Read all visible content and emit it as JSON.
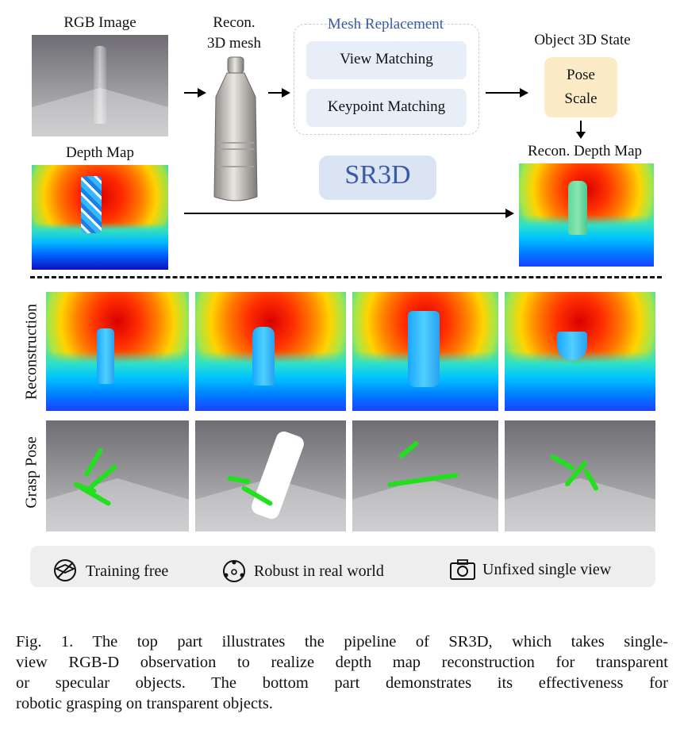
{
  "figure": {
    "rgb_label": "RGB Image",
    "mesh_label_line1": "Recon.",
    "mesh_label_line2": "3D mesh",
    "depth_label": "Depth Map",
    "mesh_replacement": {
      "title": "Mesh Replacement",
      "step1": "View Matching",
      "step2": "Keypoint Matching"
    },
    "state": {
      "title": "Object 3D State",
      "line1": "Pose",
      "line2": "Scale"
    },
    "method": "SR3D",
    "recon_depth_label": "Recon. Depth Map",
    "row_labels": {
      "reconstruction": "Reconstruction",
      "grasp": "Grasp Pose"
    },
    "features": [
      {
        "icon": "no-training-icon",
        "label": "Training free"
      },
      {
        "icon": "robust-network-icon",
        "label": "Robust in real world"
      },
      {
        "icon": "camera-icon",
        "label": "Unfixed single view"
      }
    ]
  },
  "caption": {
    "lines": [
      "Fig. 1.   The top part illustrates the pipeline of SR3D, which takes single-",
      "view RGB-D observation to realize depth map reconstruction for transparent",
      "or specular objects. The bottom part demonstrates its effectiveness for",
      "robotic grasping on transparent objects."
    ]
  },
  "colors": {
    "mesh_box_border": "#c5cbd6",
    "step_box": "#e8eef7",
    "state_box": "#fbecc7",
    "method_box": "#dbe4f3",
    "method_text": "#3a5aa5",
    "footer_bg": "#eeeeee",
    "grasp": "#22e01e"
  }
}
